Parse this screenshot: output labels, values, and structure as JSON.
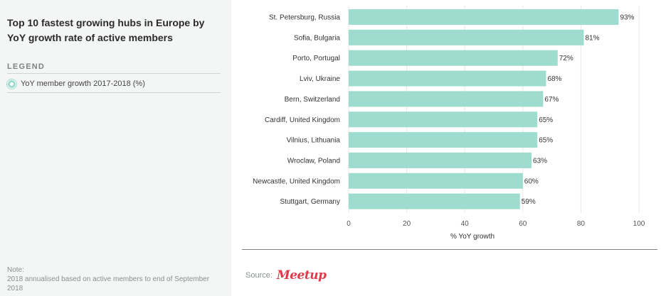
{
  "sidebar": {
    "title": "Top 10 fastest growing hubs in Europe by YoY growth rate of active members",
    "legend_heading": "LEGEND",
    "legend_items": [
      {
        "label": "YoY member growth 2017-2018 (%)",
        "color": "#9fdcd0"
      }
    ],
    "note_label": "Note:",
    "note_text": "2018 annualised based on active members to end of September 2018"
  },
  "source": {
    "label": "Source:",
    "logo_text": "Meetup",
    "logo_color": "#e0394a"
  },
  "chart_data": {
    "type": "bar",
    "orientation": "horizontal",
    "categories": [
      "St. Petersburg, Russia",
      "Sofia, Bulgaria",
      "Porto, Portugal",
      "Lviv, Ukraine",
      "Bern, Switzerland",
      "Cardiff, United Kingdom",
      "Vilnius, Lithuania",
      "Wroclaw, Poland",
      "Newcastle, United Kingdom",
      "Stuttgart, Germany"
    ],
    "values": [
      93,
      81,
      72,
      68,
      67,
      65,
      65,
      63,
      60,
      59
    ],
    "value_labels": [
      "93%",
      "81%",
      "72%",
      "68%",
      "67%",
      "65%",
      "65%",
      "63%",
      "60%",
      "59%"
    ],
    "xlabel": "% YoY growth",
    "xlim": [
      0,
      100
    ],
    "xticks": [
      0,
      20,
      40,
      60,
      80,
      100
    ],
    "grid": true,
    "bar_color": "#9fdcd0"
  }
}
